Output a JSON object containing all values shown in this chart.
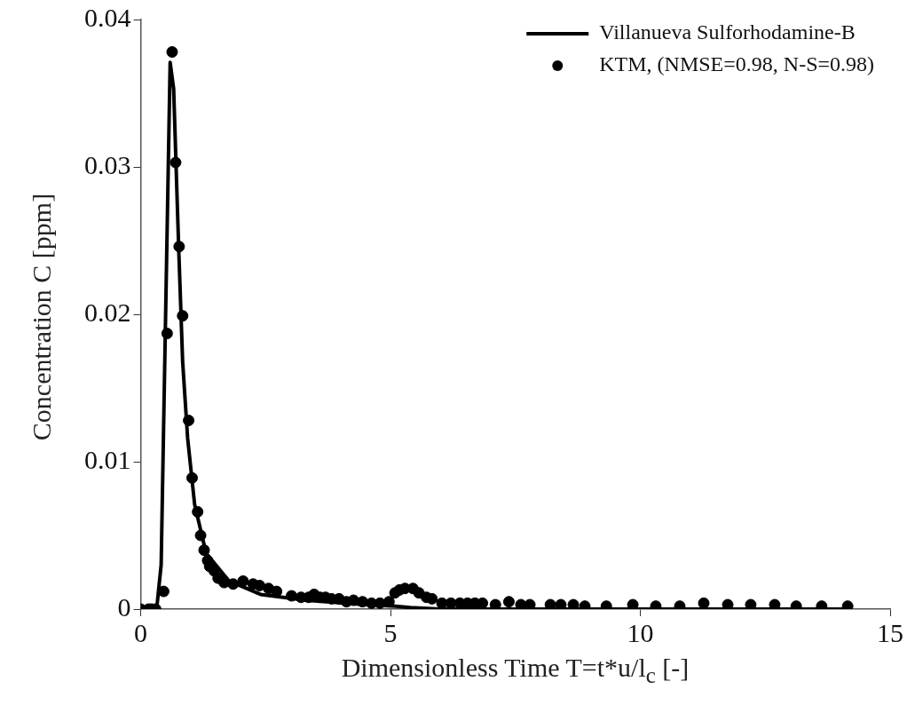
{
  "chart_data": {
    "type": "scatter",
    "xlabel": "Dimensionless Time T=t*u/l$_{c}$ [-]",
    "ylabel": "Concentration C [ppm]",
    "xlim": [
      0,
      15
    ],
    "xticks": [
      0,
      5,
      10,
      15
    ],
    "ylim": [
      0,
      0.04
    ],
    "yticks": [
      0,
      0.01,
      0.02,
      0.03,
      0.04
    ],
    "grid": false,
    "legend": "top right",
    "series": [
      {
        "name": "Villanueva Sulforhodamine-B",
        "type": "line",
        "marker": "none",
        "color": "#000000",
        "x": [
          0,
          0.32,
          0.41,
          0.59,
          0.66,
          0.76,
          0.84,
          0.94,
          1.08,
          1.31,
          1.77,
          2.4,
          3.3,
          4.5,
          5.1,
          5.4,
          6.0,
          10,
          14.15
        ],
        "values": [
          0,
          0,
          0.003,
          0.0371,
          0.0353,
          0.0246,
          0.0168,
          0.0116,
          0.0071,
          0.0038,
          0.0019,
          0.001,
          0.0006,
          0.0003,
          0.0002,
          0.0001,
          0,
          0,
          0
        ]
      },
      {
        "name": "KTM, (NMSE=0.98, N-S=0.98)",
        "type": "scatter",
        "marker": "circle",
        "color": "#000000",
        "x": [
          0,
          0.16,
          0.22,
          0.3,
          0.46,
          0.53,
          0.63,
          0.7,
          0.77,
          0.84,
          0.96,
          1.03,
          1.14,
          1.2,
          1.27,
          1.34,
          1.38,
          1.47,
          1.55,
          1.67,
          1.85,
          2.05,
          2.25,
          2.38,
          2.56,
          2.72,
          3.02,
          3.21,
          3.36,
          3.47,
          3.59,
          3.7,
          3.82,
          3.97,
          4.12,
          4.26,
          4.44,
          4.62,
          4.79,
          4.97,
          5.09,
          5.18,
          5.29,
          5.45,
          5.57,
          5.72,
          5.83,
          6.03,
          6.21,
          6.39,
          6.54,
          6.69,
          6.84,
          7.1,
          7.37,
          7.61,
          7.79,
          8.2,
          8.41,
          8.66,
          8.89,
          9.32,
          9.85,
          10.31,
          10.79,
          11.27,
          11.75,
          12.21,
          12.69,
          13.12,
          13.63,
          14.15
        ],
        "values": [
          0,
          0,
          0,
          0,
          0.0012,
          0.0187,
          0.0378,
          0.0303,
          0.0246,
          0.0199,
          0.0128,
          0.0089,
          0.0066,
          0.005,
          0.004,
          0.0033,
          0.0029,
          0.0026,
          0.0021,
          0.0018,
          0.0017,
          0.0019,
          0.0017,
          0.0016,
          0.0014,
          0.0012,
          0.0009,
          0.0008,
          0.0008,
          0.001,
          0.0008,
          0.0008,
          0.0007,
          0.0007,
          0.0005,
          0.0006,
          0.0005,
          0.0004,
          0.0004,
          0.0005,
          0.0011,
          0.0013,
          0.0014,
          0.0014,
          0.0011,
          0.0008,
          0.0007,
          0.0004,
          0.0004,
          0.0004,
          0.0004,
          0.0004,
          0.0004,
          0.0003,
          0.0005,
          0.0003,
          0.0003,
          0.0003,
          0.0003,
          0.0003,
          0.0002,
          0.0002,
          0.0003,
          0.0002,
          0.0002,
          0.0004,
          0.0003,
          0.0003,
          0.0003,
          0.0002,
          0.0002,
          0.0002
        ]
      }
    ]
  }
}
